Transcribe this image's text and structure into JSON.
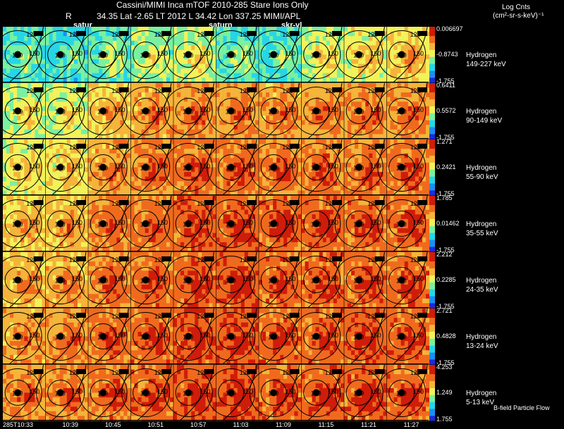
{
  "header": {
    "line1": "Cassini/MIMI Inca mTOF  2010-285   Stare    Ions Only",
    "r_label": "R",
    "line2": "34.35 Lat -2.65 LT 2012 L       34.42 Lon       337.25  MIMI/APL",
    "markers": [
      "satur",
      "saturn",
      "skr-vl"
    ],
    "units_line1": "Log Cnts",
    "units_line2": "(cm²-sr-s-keV)⁻¹",
    "footer_note": "B-field Particle Flow"
  },
  "colors": {
    "background": "#000000",
    "contour": "#000000",
    "colormap": [
      "#1e2bd6",
      "#1d8ef0",
      "#27d6e6",
      "#7af0a0",
      "#f2f25a",
      "#f5b43a",
      "#f06a1e",
      "#d01c0a"
    ]
  },
  "chart_data": {
    "type": "heatmap",
    "title": "Cassini/MIMI Inca mTOF 2010-285 Stare Ions Only",
    "x_ticks": [
      "285T10:33",
      "10:39",
      "10:45",
      "10:51",
      "10:57",
      "11:03",
      "11:09",
      "11:15",
      "11:21",
      "11:27"
    ],
    "contour_labels": [
      "120",
      "150",
      "180"
    ],
    "rows": [
      {
        "species": "Hydrogen",
        "energy": "149-227 keV",
        "cmax": "0.006697",
        "cmid": "-0.8743",
        "cmin": "-1.755",
        "levels": [
          0.35,
          0.32,
          0.4,
          0.45,
          0.5,
          0.38,
          0.35,
          0.5,
          0.55,
          0.6
        ]
      },
      {
        "species": "Hydrogen",
        "energy": "90-149 keV",
        "cmax": "0.6411",
        "cmid": "0.5572",
        "cmin": "-1.755",
        "levels": [
          0.5,
          0.5,
          0.62,
          0.7,
          0.72,
          0.72,
          0.7,
          0.72,
          0.72,
          0.73
        ]
      },
      {
        "species": "Hydrogen",
        "energy": "55-90 keV",
        "cmax": "1.271",
        "cmid": "0.2421",
        "cmin": "-1.755",
        "levels": [
          0.55,
          0.58,
          0.7,
          0.75,
          0.78,
          0.78,
          0.76,
          0.76,
          0.77,
          0.77
        ]
      },
      {
        "species": "Hydrogen",
        "energy": "35-55 keV",
        "cmax": "1.785",
        "cmid": "0.01462",
        "cmin": "-1.755",
        "levels": [
          0.62,
          0.65,
          0.75,
          0.78,
          0.82,
          0.82,
          0.8,
          0.8,
          0.8,
          0.8
        ]
      },
      {
        "species": "Hydrogen",
        "energy": "24-35 keV",
        "cmax": "2.212",
        "cmid": "0.2285",
        "cmin": "-1.755",
        "levels": [
          0.66,
          0.68,
          0.76,
          0.79,
          0.82,
          0.83,
          0.8,
          0.8,
          0.8,
          0.8
        ]
      },
      {
        "species": "Hydrogen",
        "energy": "13-24 keV",
        "cmax": "2.721",
        "cmid": "0.4828",
        "cmin": "-1.755",
        "levels": [
          0.7,
          0.72,
          0.77,
          0.8,
          0.83,
          0.84,
          0.8,
          0.8,
          0.82,
          0.8
        ]
      },
      {
        "species": "Hydrogen",
        "energy": "5-13 keV",
        "cmax": "4.253",
        "cmid": "1.249",
        "cmin": "1.755",
        "levels": [
          0.72,
          0.74,
          0.78,
          0.8,
          0.83,
          0.84,
          0.8,
          0.8,
          0.82,
          0.8
        ]
      }
    ]
  }
}
